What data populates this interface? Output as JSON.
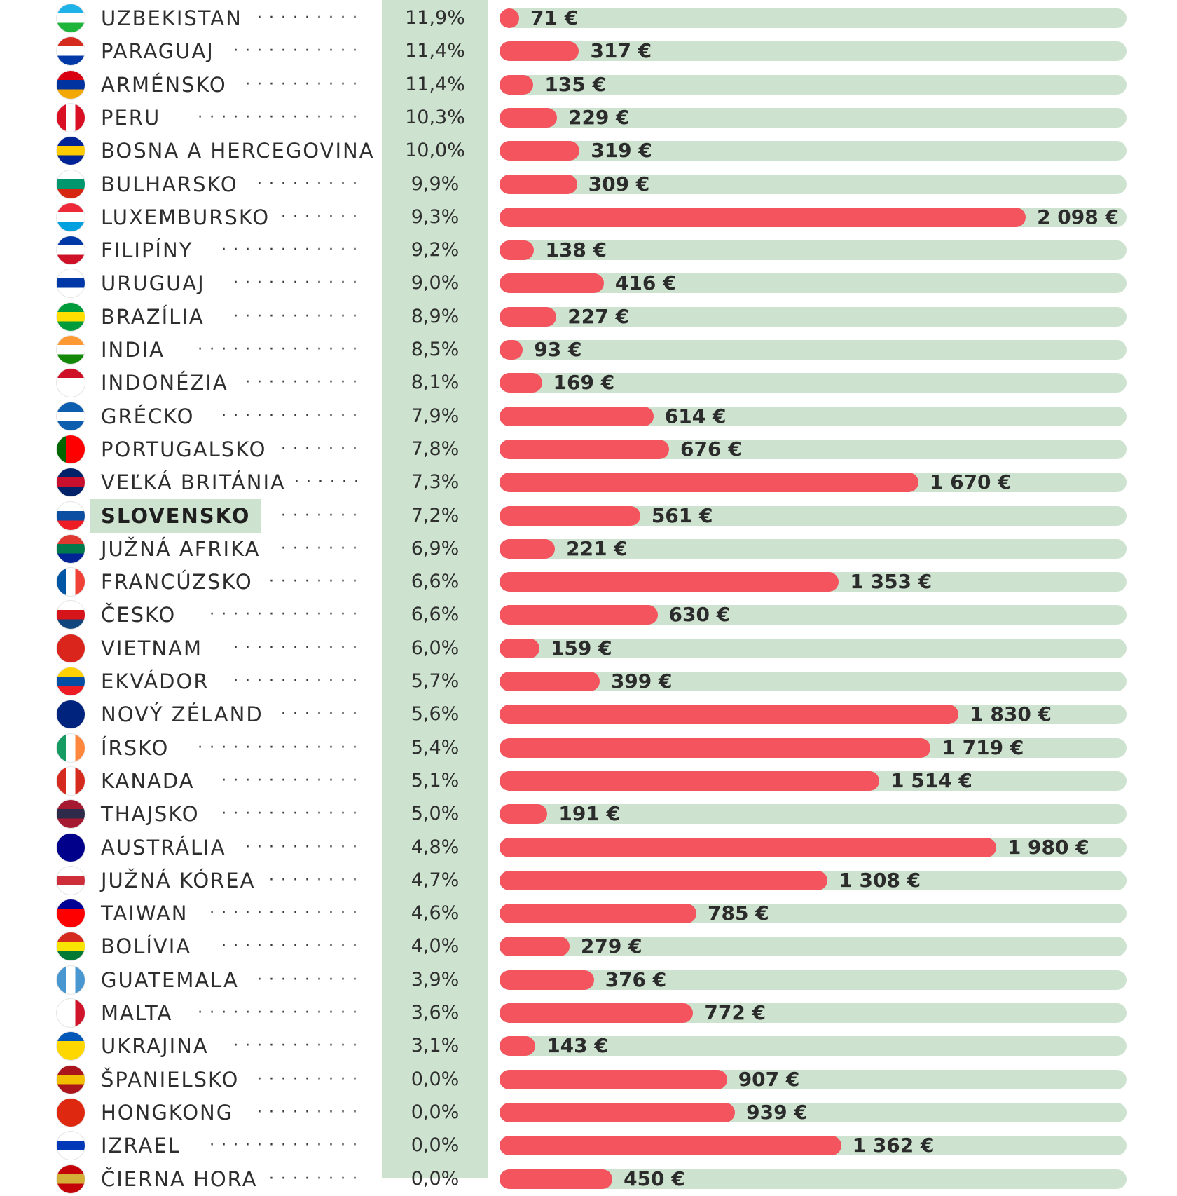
{
  "chart_data": {
    "type": "bar",
    "columns": [
      "country",
      "percent",
      "value"
    ],
    "rows": [
      {
        "country": "UZBEKISTAN",
        "percent": "11,9%",
        "value": 71,
        "value_label": "71 €",
        "flag": [
          "#1eb2e8",
          "#ffffff",
          "#1eb53a"
        ]
      },
      {
        "country": "PARAGUAJ",
        "percent": "11,4%",
        "value": 317,
        "value_label": "317 €",
        "flag": [
          "#d52b1e",
          "#ffffff",
          "#0038a8"
        ]
      },
      {
        "country": "ARMÉNSKO",
        "percent": "11,4%",
        "value": 135,
        "value_label": "135 €",
        "flag": [
          "#d90012",
          "#0033a0",
          "#f2a800"
        ]
      },
      {
        "country": "PERU",
        "percent": "10,3%",
        "value": 229,
        "value_label": "229 €",
        "flag_v": [
          "#d91023",
          "#ffffff",
          "#d91023"
        ]
      },
      {
        "country": "BOSNA A HERCEGOVINA",
        "percent": "10,0%",
        "value": 319,
        "value_label": "319 €",
        "flag": [
          "#002395",
          "#fecb00",
          "#002395"
        ]
      },
      {
        "country": "BULHARSKO",
        "percent": "9,9%",
        "value": 309,
        "value_label": "309 €",
        "flag": [
          "#ffffff",
          "#00966e",
          "#d62612"
        ]
      },
      {
        "country": "LUXEMBURSKO",
        "percent": "9,3%",
        "value": 2098,
        "value_label": "2 098 €",
        "flag": [
          "#ed2939",
          "#ffffff",
          "#00a1de"
        ]
      },
      {
        "country": "FILIPÍNY",
        "percent": "9,2%",
        "value": 138,
        "value_label": "138 €",
        "flag": [
          "#0038a8",
          "#ffffff",
          "#ce1126"
        ]
      },
      {
        "country": "URUGUAJ",
        "percent": "9,0%",
        "value": 416,
        "value_label": "416 €",
        "flag": [
          "#ffffff",
          "#0038a8",
          "#ffffff"
        ]
      },
      {
        "country": "BRAZÍLIA",
        "percent": "8,9%",
        "value": 227,
        "value_label": "227 €",
        "flag": [
          "#009c3b",
          "#ffdf00",
          "#009c3b"
        ]
      },
      {
        "country": "INDIA",
        "percent": "8,5%",
        "value": 93,
        "value_label": "93 €",
        "flag": [
          "#ff9933",
          "#ffffff",
          "#138808"
        ]
      },
      {
        "country": "INDONÉZIA",
        "percent": "8,1%",
        "value": 169,
        "value_label": "169 €",
        "flag": [
          "#ce1126",
          "#ffffff",
          "#ffffff"
        ]
      },
      {
        "country": "GRÉCKO",
        "percent": "7,9%",
        "value": 614,
        "value_label": "614 €",
        "flag": [
          "#0d5eaf",
          "#ffffff",
          "#0d5eaf"
        ]
      },
      {
        "country": "PORTUGALSKO",
        "percent": "7,8%",
        "value": 676,
        "value_label": "676 €",
        "flag_v": [
          "#006600",
          "#ff0000",
          "#ff0000"
        ]
      },
      {
        "country": "VEĽKÁ BRITÁNIA",
        "percent": "7,3%",
        "value": 1670,
        "value_label": "1 670 €",
        "flag": [
          "#012169",
          "#c8102e",
          "#012169"
        ]
      },
      {
        "country": "SLOVENSKO",
        "percent": "7,2%",
        "value": 561,
        "value_label": "561 €",
        "highlight": true,
        "flag": [
          "#ffffff",
          "#0b4ea2",
          "#ee1c25"
        ]
      },
      {
        "country": "JUŽNÁ AFRIKA",
        "percent": "6,9%",
        "value": 221,
        "value_label": "221 €",
        "flag": [
          "#de3831",
          "#007a4d",
          "#002395"
        ]
      },
      {
        "country": "FRANCÚZSKO",
        "percent": "6,6%",
        "value": 1353,
        "value_label": "1 353 €",
        "flag_v": [
          "#0055a4",
          "#ffffff",
          "#ef4135"
        ]
      },
      {
        "country": "ČESKO",
        "percent": "6,6%",
        "value": 630,
        "value_label": "630 €",
        "flag": [
          "#ffffff",
          "#d7141a",
          "#11457e"
        ]
      },
      {
        "country": "VIETNAM",
        "percent": "6,0%",
        "value": 159,
        "value_label": "159 €",
        "flag": [
          "#da251d",
          "#da251d",
          "#da251d"
        ]
      },
      {
        "country": "EKVÁDOR",
        "percent": "5,7%",
        "value": 399,
        "value_label": "399 €",
        "flag": [
          "#ffd100",
          "#034ea2",
          "#ed1c24"
        ]
      },
      {
        "country": "NOVÝ ZÉLAND",
        "percent": "5,6%",
        "value": 1830,
        "value_label": "1 830 €",
        "flag": [
          "#00247d",
          "#00247d",
          "#00247d"
        ]
      },
      {
        "country": "ÍRSKO",
        "percent": "5,4%",
        "value": 1719,
        "value_label": "1 719 €",
        "flag_v": [
          "#169b62",
          "#ffffff",
          "#ff883e"
        ]
      },
      {
        "country": "KANADA",
        "percent": "5,1%",
        "value": 1514,
        "value_label": "1 514 €",
        "flag_v": [
          "#d52b1e",
          "#ffffff",
          "#d52b1e"
        ]
      },
      {
        "country": "THAJSKO",
        "percent": "5,0%",
        "value": 191,
        "value_label": "191 €",
        "flag": [
          "#a51931",
          "#2d2a4a",
          "#a51931"
        ]
      },
      {
        "country": "AUSTRÁLIA",
        "percent": "4,8%",
        "value": 1980,
        "value_label": "1 980 €",
        "flag": [
          "#00008b",
          "#00008b",
          "#00008b"
        ]
      },
      {
        "country": "JUŽNÁ KÓREA",
        "percent": "4,7%",
        "value": 1308,
        "value_label": "1 308 €",
        "flag": [
          "#ffffff",
          "#cd2e3a",
          "#ffffff"
        ]
      },
      {
        "country": "TAIWAN",
        "percent": "4,6%",
        "value": 785,
        "value_label": "785 €",
        "flag": [
          "#000095",
          "#fe0000",
          "#fe0000"
        ]
      },
      {
        "country": "BOLÍVIA",
        "percent": "4,0%",
        "value": 279,
        "value_label": "279 €",
        "flag": [
          "#d52b1e",
          "#f9e300",
          "#007934"
        ]
      },
      {
        "country": "GUATEMALA",
        "percent": "3,9%",
        "value": 376,
        "value_label": "376 €",
        "flag_v": [
          "#4997d0",
          "#ffffff",
          "#4997d0"
        ]
      },
      {
        "country": "MALTA",
        "percent": "3,6%",
        "value": 772,
        "value_label": "772 €",
        "flag_v": [
          "#ffffff",
          "#ffffff",
          "#cf142b"
        ]
      },
      {
        "country": "UKRAJINA",
        "percent": "3,1%",
        "value": 143,
        "value_label": "143 €",
        "flag": [
          "#0057b7",
          "#ffd700",
          "#ffd700"
        ]
      },
      {
        "country": "ŠPANIELSKO",
        "percent": "0,0%",
        "value": 907,
        "value_label": "907 €",
        "flag": [
          "#aa151b",
          "#f1bf00",
          "#aa151b"
        ]
      },
      {
        "country": "HONGKONG",
        "percent": "0,0%",
        "value": 939,
        "value_label": "939 €",
        "flag": [
          "#de2910",
          "#de2910",
          "#de2910"
        ]
      },
      {
        "country": "IZRAEL",
        "percent": "0,0%",
        "value": 1362,
        "value_label": "1 362 €",
        "flag": [
          "#ffffff",
          "#0038b8",
          "#ffffff"
        ]
      },
      {
        "country": "ČIERNA HORA",
        "percent": "0,0%",
        "value": 450,
        "value_label": "450 €",
        "flag": [
          "#c40308",
          "#d4af37",
          "#c40308"
        ]
      }
    ],
    "value_range": [
      0,
      2500
    ],
    "bar_color": "#f4545e",
    "track_color": "#cde3d0",
    "highlight_color": "#cde3d0"
  }
}
